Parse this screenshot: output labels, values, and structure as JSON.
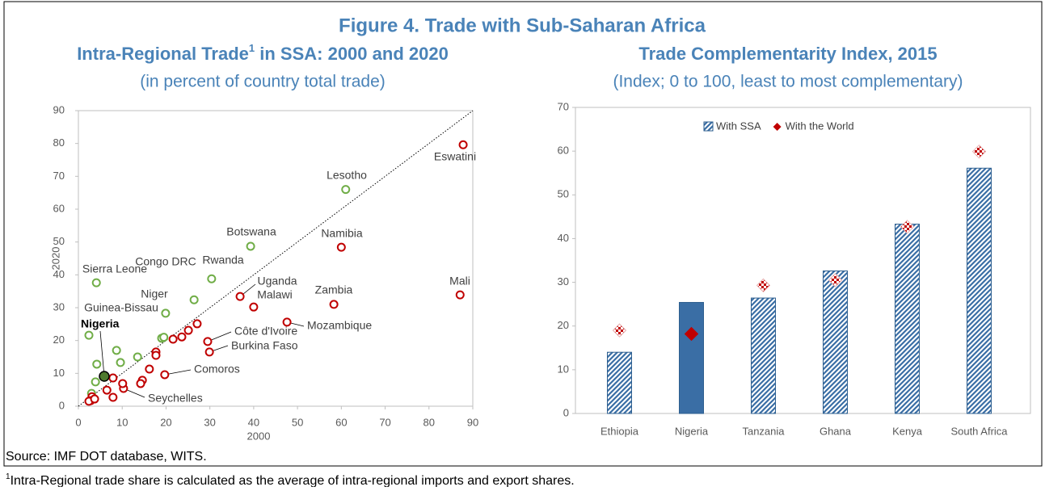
{
  "title": "Figure 4. Trade with Sub-Saharan Africa",
  "chart_data": [
    {
      "type": "scatter",
      "title": [
        "Intra-Regional Trade",
        "1",
        " in SSA: 2000 and 2020"
      ],
      "subtitle": "(in percent of country total trade)",
      "x_label": "2000",
      "y_label": "2020",
      "xlim": [
        0,
        90
      ],
      "ylim": [
        0,
        90
      ],
      "xticks": [
        0,
        10,
        20,
        30,
        40,
        50,
        60,
        70,
        80,
        90
      ],
      "yticks": [
        0,
        10,
        20,
        30,
        40,
        50,
        60,
        70,
        80,
        90
      ],
      "diagonal": true,
      "series": [
        {
          "color": "#70ad47",
          "x": [
            61,
            39.3,
            30.4,
            26.4,
            4.1,
            19.9,
            2.4,
            8.7,
            19,
            19.5,
            13.5,
            9.6,
            4.2,
            3.9,
            3
          ],
          "y": [
            66,
            48.7,
            38.8,
            32.4,
            37.6,
            28.3,
            21.6,
            17,
            20.7,
            21,
            15,
            13.3,
            12.8,
            7.4,
            3.9
          ],
          "labels": [
            "Lesotho",
            "Botswana",
            "Rwanda",
            "Congo DRC",
            "Sierra Leone",
            "Niger",
            "Guinea-Bissau",
            null,
            null,
            null,
            null,
            null,
            null,
            null,
            null
          ]
        },
        {
          "color": "#c00000",
          "x": [
            87.8,
            60,
            87.1,
            58.3,
            36.9,
            40,
            47.6,
            29.5,
            29.9,
            19.7,
            10.3,
            27.1,
            25.1,
            23.6,
            21.6,
            17.7,
            17.7,
            16.2,
            14.6,
            14.2,
            10.1,
            7.9,
            6.5,
            7.9,
            3.1,
            2.8,
            2.4,
            3.7
          ],
          "y": [
            79.6,
            48.4,
            33.9,
            31,
            33.4,
            30.2,
            25.6,
            19.7,
            16.5,
            9.6,
            5.4,
            25.1,
            23.1,
            21.1,
            20.4,
            16.5,
            15.5,
            11.3,
            7.9,
            6.9,
            6.9,
            8.6,
            4.9,
            2.7,
            2.9,
            1.7,
            1.5,
            2.2
          ],
          "labels": [
            "Eswatini",
            "Namibia",
            "Mali",
            "Zambia",
            "Uganda",
            "Malawi",
            "Mozambique",
            "Côte d'Ivoire",
            "Burkina Faso",
            "Comoros",
            "Seychelles",
            null,
            null,
            null,
            null,
            null,
            null,
            null,
            null,
            null,
            null,
            null,
            null,
            null,
            null,
            null,
            null,
            null
          ]
        },
        {
          "color": "#4e7a2e",
          "filled": true,
          "bold": true,
          "x": [
            5.9
          ],
          "y": [
            9.1
          ],
          "labels": [
            "Nigeria"
          ]
        }
      ]
    },
    {
      "type": "bar",
      "title": "Trade Complementarity Index, 2015",
      "subtitle": "(Index; 0 to 100, least to most complementary)",
      "categories": [
        "Ethiopia",
        "Nigeria",
        "Tanzania",
        "Ghana",
        "Kenya",
        "South Africa"
      ],
      "ylim": [
        0,
        70
      ],
      "yticks": [
        0,
        10,
        20,
        30,
        40,
        50,
        60,
        70
      ],
      "highlight": "Nigeria",
      "legend": "top",
      "series": [
        {
          "name": "With SSA",
          "color": "#3a6ea5",
          "values": [
            14,
            25.4,
            26.4,
            32.6,
            43.3,
            56.1
          ]
        },
        {
          "name": "With the World",
          "color": "#c00000",
          "marker": "diamond",
          "values": [
            19,
            18.2,
            29.3,
            30.5,
            42.7,
            59.9
          ]
        }
      ]
    }
  ],
  "notes": {
    "source": "Source: IMF DOT database, WITS.",
    "footnote": [
      "1",
      "Intra-Regional trade share is calculated as the average of intra-regional imports and export shares."
    ]
  }
}
